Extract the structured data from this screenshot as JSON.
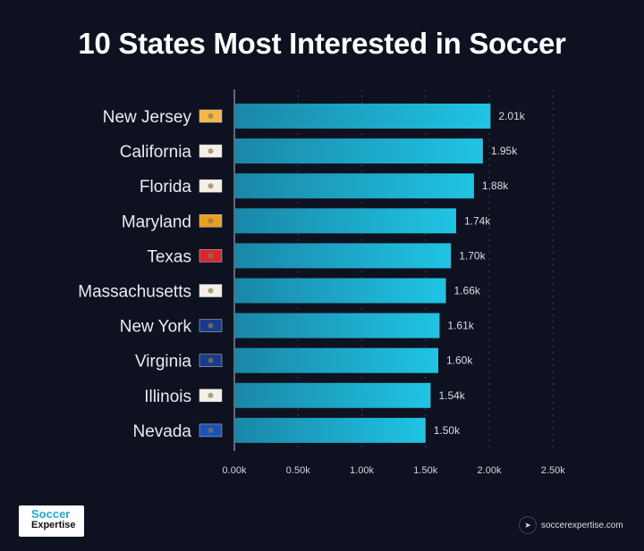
{
  "chart_data": {
    "type": "bar",
    "orientation": "horizontal",
    "title": "10 States Most Interested in Soccer",
    "categories": [
      "New Jersey",
      "California",
      "Florida",
      "Maryland",
      "Texas",
      "Massachusetts",
      "New York",
      "Virginia",
      "Illinois",
      "Nevada"
    ],
    "values": [
      2.01,
      1.95,
      1.88,
      1.74,
      1.7,
      1.66,
      1.61,
      1.6,
      1.54,
      1.5
    ],
    "value_labels": [
      "2.01k",
      "1.95k",
      "1.88k",
      "1.74k",
      "1.70k",
      "1.66k",
      "1.61k",
      "1.60k",
      "1.54k",
      "1.50k"
    ],
    "x_ticks": [
      0,
      0.5,
      1.0,
      1.5,
      2.0,
      2.5
    ],
    "x_tick_labels": [
      "0.00k",
      "0.50k",
      "1.00k",
      "1.50k",
      "2.00k",
      "2.50k"
    ],
    "xlim": [
      0,
      2.5
    ],
    "xlabel": "",
    "ylabel": "",
    "grid": true,
    "bar_color_start": "#1a87a8",
    "bar_color_end": "#20c4e4",
    "flag_colors": [
      "#f2b64a",
      "#f4f0e8",
      "#f4f0e8",
      "#e8a020",
      "#d8282e",
      "#f4f0e8",
      "#1c3a8a",
      "#1c3a8a",
      "#f4f0e8",
      "#1a52b8"
    ]
  },
  "footer": {
    "logo_line1": "Soccer",
    "logo_line2": "Expertise",
    "website": "soccerexpertise.com"
  }
}
